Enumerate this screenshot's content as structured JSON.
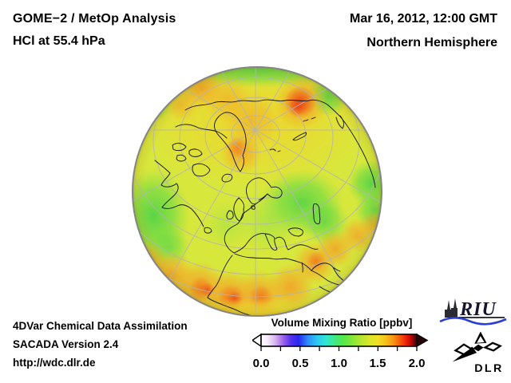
{
  "header": {
    "title_line1": "GOME−2 / MetOp Analysis",
    "title_line2": "HCl at 55.4 hPa",
    "date": "Mar 16, 2012, 12:00 GMT",
    "region": "Northern Hemisphere"
  },
  "globe": {
    "projection": "orthographic Northern Hemisphere globe",
    "graticule_color": "#b4b4b4",
    "rim_color": "#858585",
    "coastline_color": "#101010",
    "base_field_color": "#d8e73c",
    "low_value_color": "#46d148",
    "mid_value_color": "#f0e228",
    "high_value_color": "#e93c14"
  },
  "colorbar": {
    "title": "Volume Mixing Ratio [ppbv]",
    "unit": "ppbv",
    "min": 0.0,
    "max": 2.0,
    "tick_step_minor": 0.25,
    "tick_labels": [
      "0.0",
      "0.5",
      "1.0",
      "1.5",
      "2.0"
    ],
    "gradient_stops": [
      {
        "at": 0.0,
        "color": "#ffffff"
      },
      {
        "at": 0.04,
        "color": "#f6ecfa"
      },
      {
        "at": 0.09,
        "color": "#d8b4f0"
      },
      {
        "at": 0.14,
        "color": "#9f66ea"
      },
      {
        "at": 0.19,
        "color": "#5533ee"
      },
      {
        "at": 0.24,
        "color": "#2727ee"
      },
      {
        "at": 0.3,
        "color": "#2f8cfa"
      },
      {
        "at": 0.36,
        "color": "#2cc8f2"
      },
      {
        "at": 0.42,
        "color": "#30e8d0"
      },
      {
        "at": 0.47,
        "color": "#3fe88a"
      },
      {
        "at": 0.52,
        "color": "#4fe84f"
      },
      {
        "at": 0.58,
        "color": "#7fe63a"
      },
      {
        "at": 0.64,
        "color": "#b4e630"
      },
      {
        "at": 0.7,
        "color": "#dce62c"
      },
      {
        "at": 0.75,
        "color": "#f2e026"
      },
      {
        "at": 0.8,
        "color": "#f8c11c"
      },
      {
        "at": 0.85,
        "color": "#f79414"
      },
      {
        "at": 0.89,
        "color": "#f55c0c"
      },
      {
        "at": 0.93,
        "color": "#ee2206"
      },
      {
        "at": 0.96,
        "color": "#c00a04"
      },
      {
        "at": 1.0,
        "color": "#38040a"
      }
    ]
  },
  "footer": {
    "line1": "4DVar Chemical Data Assimilation",
    "line2": "SACADA Version 2.4",
    "line3": "http://wdc.dlr.de"
  },
  "logos": {
    "riu_text": "RIU",
    "dlr_text": "DLR",
    "riu_wave_color": "#2b3fd0"
  }
}
